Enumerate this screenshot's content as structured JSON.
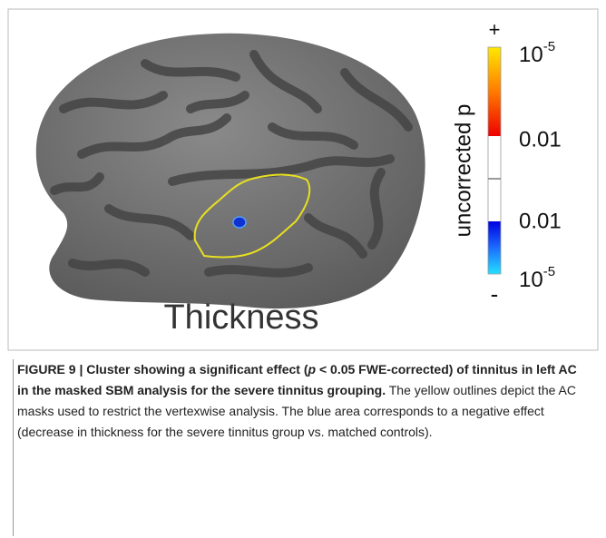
{
  "figure": {
    "colorbar": {
      "plus": "+",
      "minus": "-",
      "axis_label": "uncorrected p",
      "labels": [
        {
          "base": "10",
          "exponent": "-5"
        },
        {
          "text": "0.01"
        },
        {
          "text": "0.01"
        },
        {
          "base": "10",
          "exponent": "-5"
        }
      ]
    },
    "panel_label": "Thickness",
    "caption": {
      "bold_start": "FIGURE 9 | Cluster showing a significant effect (",
      "italic": "p",
      "bold_end": " < 0.05 FWE-corrected) of tinnitus in left AC in the masked SBM analysis for the severe tinnitus grouping.",
      "body": " The yellow outlines depict the AC masks used to restrict the vertexwise analysis. The blue area corresponds to a negative effect (decrease in thickness for the severe tinnitus group vs. matched controls)."
    }
  }
}
